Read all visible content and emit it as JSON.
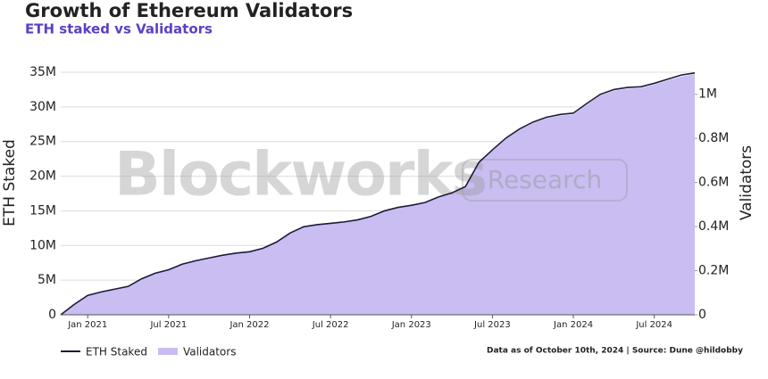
{
  "chart_data": {
    "type": "line",
    "title": "Growth of Ethereum Validators",
    "subtitle": "ETH staked vs Validators",
    "y_label": "ETH Staked",
    "y2_label": "Validators",
    "watermark": [
      "Blockworks",
      "Research"
    ],
    "note": "Data as of October 10th, 2024 | Source: Dune @hildobby",
    "x": [
      "2020-11",
      "2020-12",
      "2021-01",
      "2021-02",
      "2021-03",
      "2021-04",
      "2021-05",
      "2021-06",
      "2021-07",
      "2021-08",
      "2021-09",
      "2021-10",
      "2021-11",
      "2021-12",
      "2022-01",
      "2022-02",
      "2022-03",
      "2022-04",
      "2022-05",
      "2022-06",
      "2022-07",
      "2022-08",
      "2022-09",
      "2022-10",
      "2022-11",
      "2022-12",
      "2023-01",
      "2023-02",
      "2023-03",
      "2023-04",
      "2023-05",
      "2023-06",
      "2023-07",
      "2023-08",
      "2023-09",
      "2023-10",
      "2023-11",
      "2023-12",
      "2024-01",
      "2024-02",
      "2024-03",
      "2024-04",
      "2024-05",
      "2024-06",
      "2024-07",
      "2024-08",
      "2024-09",
      "2024-10"
    ],
    "xlim": [
      "2020-11",
      "2024-10"
    ],
    "xticks": [
      {
        "value": "2021-01",
        "label": "Jan 2021"
      },
      {
        "value": "2021-07",
        "label": "Jul 2021"
      },
      {
        "value": "2022-01",
        "label": "Jan 2022"
      },
      {
        "value": "2022-07",
        "label": "Jul 2022"
      },
      {
        "value": "2023-01",
        "label": "Jan 2023"
      },
      {
        "value": "2023-07",
        "label": "Jul 2023"
      },
      {
        "value": "2024-01",
        "label": "Jan 2024"
      },
      {
        "value": "2024-07",
        "label": "Jul 2024"
      }
    ],
    "ylim": [
      0,
      35000000
    ],
    "yticks": [
      0,
      {
        "value": 5000000,
        "label": "5M"
      },
      {
        "value": 10000000,
        "label": "10M"
      },
      {
        "value": 15000000,
        "label": "15M"
      },
      {
        "value": 20000000,
        "label": "20M"
      },
      {
        "value": 25000000,
        "label": "25M"
      },
      {
        "value": 30000000,
        "label": "30M"
      },
      {
        "value": 35000000,
        "label": "35M"
      }
    ],
    "y2lim": [
      0,
      1100000
    ],
    "y2ticks": [
      0,
      {
        "value": 200000,
        "label": "0.2M"
      },
      {
        "value": 400000,
        "label": "0.4M"
      },
      {
        "value": 600000,
        "label": "0.6M"
      },
      {
        "value": 800000,
        "label": "0.8M"
      },
      {
        "value": 1000000,
        "label": "1M"
      }
    ],
    "grid": true,
    "series": [
      {
        "name": "ETH Staked",
        "type": "line",
        "color": "#1e1a3a",
        "values": [
          0,
          1500000,
          2800000,
          3300000,
          3700000,
          4100000,
          5200000,
          6000000,
          6500000,
          7300000,
          7800000,
          8200000,
          8600000,
          8900000,
          9100000,
          9600000,
          10500000,
          11800000,
          12700000,
          13000000,
          13200000,
          13400000,
          13700000,
          14200000,
          15000000,
          15500000,
          15800000,
          16200000,
          17000000,
          17600000,
          18500000,
          22000000,
          23800000,
          25500000,
          26800000,
          27800000,
          28500000,
          28900000,
          29100000,
          30500000,
          31800000,
          32500000,
          32800000,
          32900000,
          33400000,
          34000000,
          34600000,
          34900000
        ]
      },
      {
        "name": "Validators",
        "type": "area",
        "axis": "y2",
        "color": "#c9bdf2",
        "values": [
          0,
          47000,
          88000,
          103000,
          116000,
          128000,
          163000,
          188000,
          203000,
          228000,
          244000,
          256000,
          269000,
          278000,
          284000,
          300000,
          328000,
          369000,
          397000,
          406000,
          413000,
          419000,
          428000,
          444000,
          469000,
          484000,
          494000,
          506000,
          531000,
          550000,
          578000,
          688000,
          744000,
          797000,
          838000,
          869000,
          891000,
          903000,
          909000,
          953000,
          994000,
          1016000,
          1025000,
          1028000,
          1044000,
          1063000,
          1081000,
          1091000
        ]
      }
    ]
  }
}
